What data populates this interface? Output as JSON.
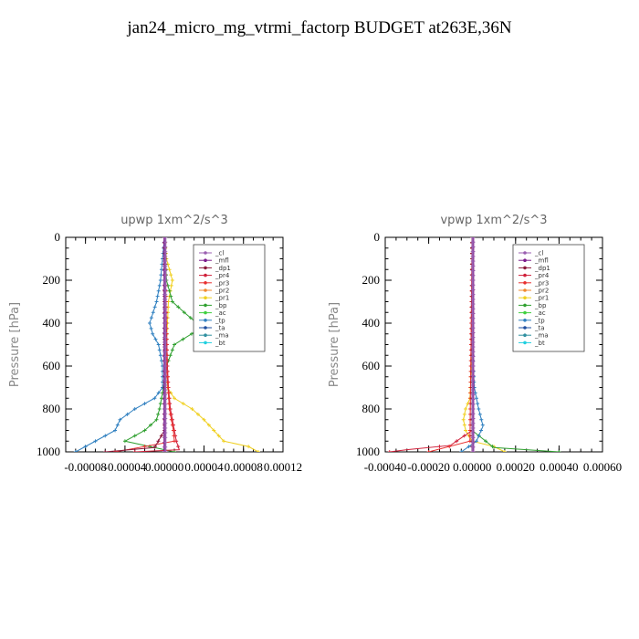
{
  "page": {
    "title": "jan24_micro_mg_vtrmi_factorp  BUDGET at263E,36N"
  },
  "legend_entries": [
    {
      "name": "_cl",
      "color": "#9a5fb0"
    },
    {
      "name": "_mfl",
      "color": "#7b1c8c"
    },
    {
      "name": "_dp1",
      "color": "#8b1a3a"
    },
    {
      "name": "_pr4",
      "color": "#d0203a"
    },
    {
      "name": "_pr3",
      "color": "#e83030"
    },
    {
      "name": "_pr2",
      "color": "#f08a30"
    },
    {
      "name": "_pr1",
      "color": "#f0d020"
    },
    {
      "name": "_bp",
      "color": "#30a030"
    },
    {
      "name": "_ac",
      "color": "#40d040"
    },
    {
      "name": "_tp",
      "color": "#3080c0"
    },
    {
      "name": "_ta",
      "color": "#2050a0"
    },
    {
      "name": "_ma",
      "color": "#3090a0"
    },
    {
      "name": "_bt",
      "color": "#20d0e0"
    }
  ],
  "chart_data": [
    {
      "type": "line",
      "title": "upwp   1xm^2/s^3",
      "ylabel": "Pressure [hPa]",
      "xlabel": "",
      "ylim": [
        1000,
        0
      ],
      "xlim": [
        -0.0001,
        0.00012
      ],
      "x_ticks": [
        "-0.00008",
        "-0.00004",
        "0.00000",
        "0.00004",
        "0.00008",
        "0.00012"
      ],
      "x_tick_values": [
        -8e-05,
        -4e-05,
        0.0,
        4e-05,
        8e-05,
        0.00012
      ],
      "y_ticks": [
        "0",
        "200",
        "400",
        "600",
        "800",
        "1000"
      ],
      "y_tick_values": [
        0,
        200,
        400,
        600,
        800,
        1000
      ],
      "legend_position": "top-right",
      "series": [
        {
          "name": "_pr1",
          "p": [
            0,
            100,
            200,
            300,
            500,
            700,
            750,
            800,
            850,
            900,
            950,
            975,
            1000
          ],
          "x": [
            0.0,
            2e-06,
            8e-06,
            4e-06,
            2e-06,
            3e-06,
            1e-05,
            2.8e-05,
            4e-05,
            5e-05,
            6e-05,
            8.5e-05,
            9.5e-05
          ]
        },
        {
          "name": "_bp",
          "p": [
            0,
            200,
            300,
            350,
            420,
            500,
            600,
            700,
            800,
            850,
            900,
            950,
            1000
          ],
          "x": [
            0.0,
            2e-06,
            8e-06,
            2e-05,
            3.8e-05,
            1e-05,
            2e-06,
            -1e-06,
            -5e-06,
            -8e-06,
            -2e-05,
            -4e-05,
            1e-05
          ]
        },
        {
          "name": "_tp",
          "p": [
            0,
            200,
            300,
            400,
            450,
            500,
            600,
            700,
            750,
            800,
            850,
            900,
            950,
            1000
          ],
          "x": [
            0.0,
            -4e-06,
            -8e-06,
            -1.5e-05,
            -1.2e-05,
            -6e-06,
            -2e-06,
            -2e-06,
            -1e-05,
            -3e-05,
            -4.5e-05,
            -5e-05,
            -7e-05,
            -9e-05
          ]
        },
        {
          "name": "_pr4",
          "p": [
            0,
            200,
            400,
            600,
            700,
            800,
            850,
            900,
            950,
            990,
            1000
          ],
          "x": [
            0.0,
            1e-06,
            2e-06,
            3e-06,
            4e-06,
            6e-06,
            8e-06,
            1e-05,
            1.2e-05,
            1.5e-05,
            -3e-05
          ]
        },
        {
          "name": "_pr3",
          "p": [
            0,
            300,
            600,
            800,
            900,
            950,
            1000
          ],
          "x": [
            0.0,
            1e-06,
            2e-06,
            5e-06,
            9e-06,
            1e-05,
            -5e-05
          ]
        },
        {
          "name": "_dp1",
          "p": [
            0,
            500,
            900,
            980,
            1000
          ],
          "x": [
            0.0,
            0.0,
            0.0,
            -1e-05,
            -6e-05
          ]
        },
        {
          "name": "_mfl",
          "p": [
            0,
            1000
          ],
          "x": [
            0.0,
            0.0
          ]
        },
        {
          "name": "_cl",
          "p": [
            0,
            1000
          ],
          "x": [
            1e-06,
            1e-06
          ]
        }
      ]
    },
    {
      "type": "line",
      "title": "vpwp   1xm^2/s^3",
      "ylabel": "Pressure [hPa]",
      "xlabel": "",
      "ylim": [
        1000,
        0
      ],
      "xlim": [
        -0.0004,
        0.0006
      ],
      "x_ticks": [
        "-0.00040",
        "-0.00020",
        "0.00000",
        "0.00020",
        "0.00040",
        "0.00060"
      ],
      "x_tick_values": [
        -0.0004,
        -0.0002,
        0.0,
        0.0002,
        0.0004,
        0.0006
      ],
      "y_ticks": [
        "0",
        "200",
        "400",
        "600",
        "800",
        "1000"
      ],
      "y_tick_values": [
        0,
        200,
        400,
        600,
        800,
        1000
      ],
      "legend_position": "top-right",
      "series": [
        {
          "name": "_pr1",
          "p": [
            0,
            500,
            750,
            800,
            850,
            900,
            950,
            975,
            1000
          ],
          "x": [
            0.0,
            0.0,
            -1e-05,
            -3e-05,
            -4e-05,
            -3e-05,
            0.0,
            0.0001,
            0.00015
          ]
        },
        {
          "name": "_bp",
          "p": [
            0,
            900,
            980,
            1000
          ],
          "x": [
            0.0,
            0.0,
            0.0001,
            0.0004
          ]
        },
        {
          "name": "_tp",
          "p": [
            0,
            500,
            700,
            800,
            880,
            950,
            1000
          ],
          "x": [
            0.0,
            0.0,
            1e-05,
            3e-05,
            5e-05,
            2e-05,
            -5e-05
          ]
        },
        {
          "name": "_pr4",
          "p": [
            0,
            900,
            970,
            990,
            1000
          ],
          "x": [
            0.0,
            0.0,
            -0.0001,
            -0.0003,
            -0.00038
          ]
        },
        {
          "name": "_pr3",
          "p": [
            0,
            950,
            1000
          ],
          "x": [
            0.0,
            -1e-05,
            -0.0002
          ]
        },
        {
          "name": "_dp1",
          "p": [
            0,
            1000
          ],
          "x": [
            0.0,
            0.0
          ]
        },
        {
          "name": "_mfl",
          "p": [
            0,
            1000
          ],
          "x": [
            5e-06,
            5e-06
          ]
        },
        {
          "name": "_cl",
          "p": [
            0,
            1000
          ],
          "x": [
            2e-06,
            2e-06
          ]
        }
      ]
    }
  ]
}
